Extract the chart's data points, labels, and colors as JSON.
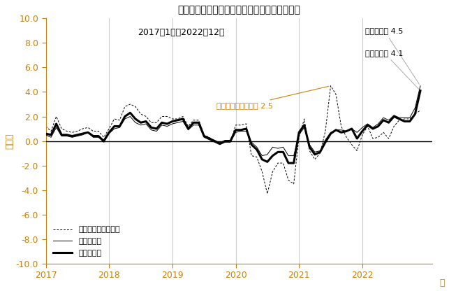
{
  "title": "現金給与総額（前年同月比）　就業形態別比較",
  "subtitle": "2017年1月〜2022年12月",
  "xlabel": "年",
  "ylabel": "（％）",
  "ylim": [
    -10.0,
    10.0
  ],
  "yticks": [
    -10.0,
    -8.0,
    -6.0,
    -4.0,
    -2.0,
    0.0,
    2.0,
    4.0,
    6.0,
    8.0,
    10.0
  ],
  "xticks": [
    2017,
    2018,
    2019,
    2020,
    2021,
    2022
  ],
  "vline_years": [
    2018,
    2019,
    2020,
    2021,
    2022
  ],
  "legend_labels": [
    "就業形態計",
    "一般労働者",
    "パートタイム労働者"
  ],
  "annotation_parttime": "パートタイム労働者 2.5",
  "annotation_general": "一般労働者 4.5",
  "annotation_total": "就業形態計 4.1",
  "color_axis": "#c8820a",
  "color_parttime_ann": "#c8820a",
  "color_general_ann": "#808080",
  "months": 72,
  "total": [
    0.6,
    0.5,
    1.4,
    0.5,
    0.5,
    0.4,
    0.5,
    0.6,
    0.7,
    0.4,
    0.4,
    0.0,
    0.7,
    1.2,
    1.2,
    2.0,
    2.3,
    1.8,
    1.5,
    1.6,
    1.1,
    1.0,
    1.5,
    1.4,
    1.6,
    1.7,
    1.8,
    1.0,
    1.5,
    1.5,
    0.4,
    0.2,
    0.0,
    -0.2,
    0.0,
    0.0,
    0.9,
    0.9,
    1.0,
    -0.3,
    -0.7,
    -1.5,
    -1.7,
    -1.2,
    -0.9,
    -0.9,
    -1.8,
    -1.8,
    0.7,
    1.3,
    -0.5,
    -1.1,
    -0.9,
    -0.1,
    0.6,
    0.9,
    0.7,
    0.8,
    1.0,
    0.2,
    0.8,
    1.3,
    1.0,
    1.2,
    1.7,
    1.5,
    2.0,
    1.8,
    1.6,
    1.6,
    2.2,
    4.1
  ],
  "general": [
    0.5,
    0.3,
    1.1,
    0.4,
    0.4,
    0.3,
    0.4,
    0.5,
    0.7,
    0.3,
    0.3,
    -0.1,
    0.6,
    1.0,
    1.1,
    1.8,
    2.0,
    1.5,
    1.3,
    1.4,
    0.9,
    0.8,
    1.3,
    1.2,
    1.4,
    1.5,
    1.6,
    0.9,
    1.3,
    1.3,
    0.3,
    0.1,
    -0.1,
    -0.3,
    -0.1,
    -0.1,
    0.7,
    0.8,
    0.8,
    -0.1,
    -0.5,
    -1.2,
    -1.1,
    -0.5,
    -0.6,
    -0.5,
    -1.2,
    -1.2,
    0.5,
    1.1,
    -0.3,
    -0.9,
    -0.8,
    0.1,
    0.7,
    0.9,
    0.9,
    0.8,
    1.0,
    0.7,
    1.1,
    1.4,
    1.1,
    1.4,
    1.9,
    1.7,
    2.1,
    1.9,
    1.9,
    1.9,
    2.7,
    4.5
  ],
  "parttime": [
    1.2,
    0.8,
    2.0,
    1.0,
    0.8,
    0.7,
    0.8,
    1.0,
    1.1,
    0.8,
    0.8,
    0.3,
    1.0,
    1.8,
    1.7,
    2.8,
    3.0,
    2.8,
    2.2,
    2.0,
    1.5,
    1.5,
    2.0,
    2.0,
    1.8,
    1.8,
    2.0,
    1.2,
    1.7,
    1.7,
    0.5,
    0.3,
    0.0,
    -0.2,
    0.0,
    -0.1,
    1.3,
    1.3,
    1.4,
    -1.2,
    -1.3,
    -2.5,
    -4.3,
    -2.5,
    -1.8,
    -1.8,
    -3.2,
    -3.5,
    0.3,
    1.8,
    -0.8,
    -1.5,
    -1.0,
    0.8,
    4.5,
    3.8,
    1.2,
    0.3,
    -0.3,
    -0.8,
    0.5,
    1.2,
    0.2,
    0.3,
    0.7,
    0.2,
    1.2,
    1.7,
    1.8,
    1.8,
    2.2,
    2.5
  ]
}
